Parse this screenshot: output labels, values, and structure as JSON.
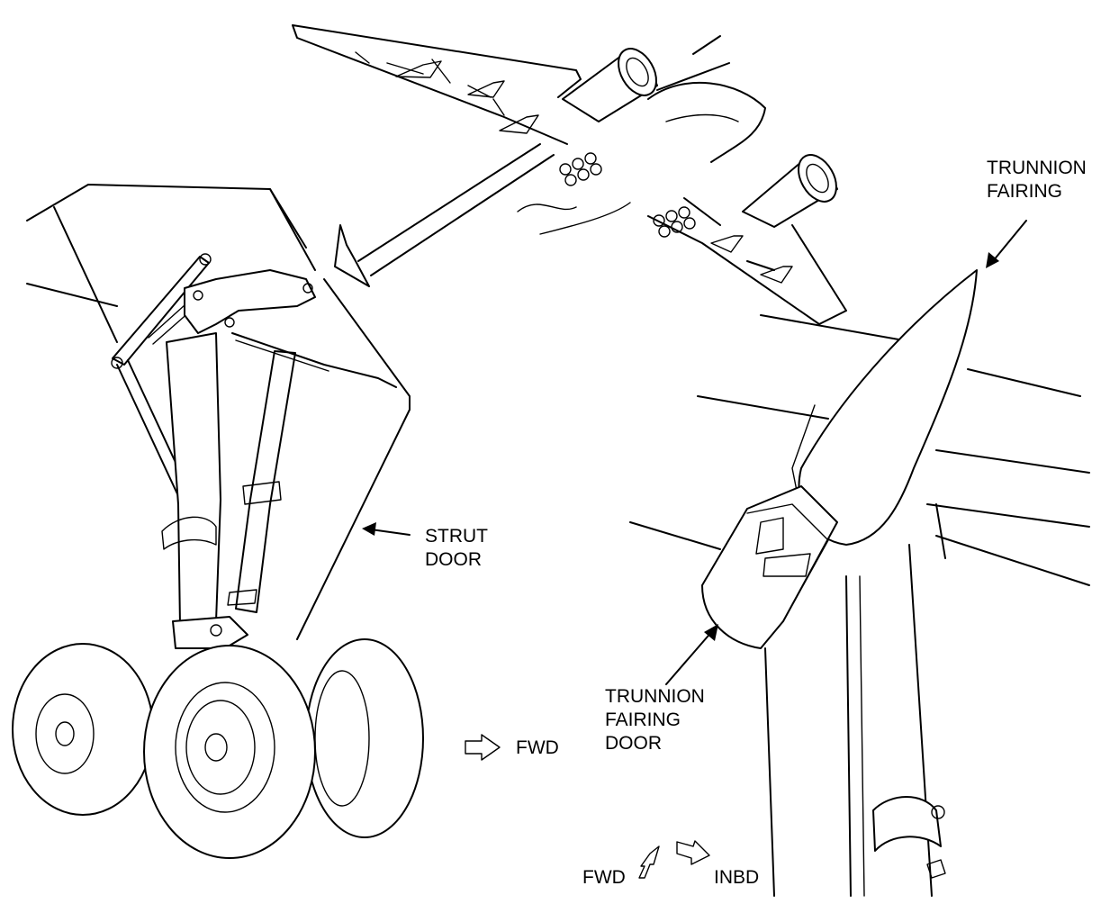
{
  "labels": {
    "trunnion_fairing_line1": "TRUNNION",
    "trunnion_fairing_line2": "FAIRING",
    "strut_door_line1": "STRUT",
    "strut_door_line2": "DOOR",
    "trunnion_fairing_door_line1": "TRUNNION",
    "trunnion_fairing_door_line2": "FAIRING",
    "trunnion_fairing_door_line3": "DOOR",
    "fwd_main": "FWD",
    "fwd_small": "FWD",
    "inbd": "INBD"
  }
}
